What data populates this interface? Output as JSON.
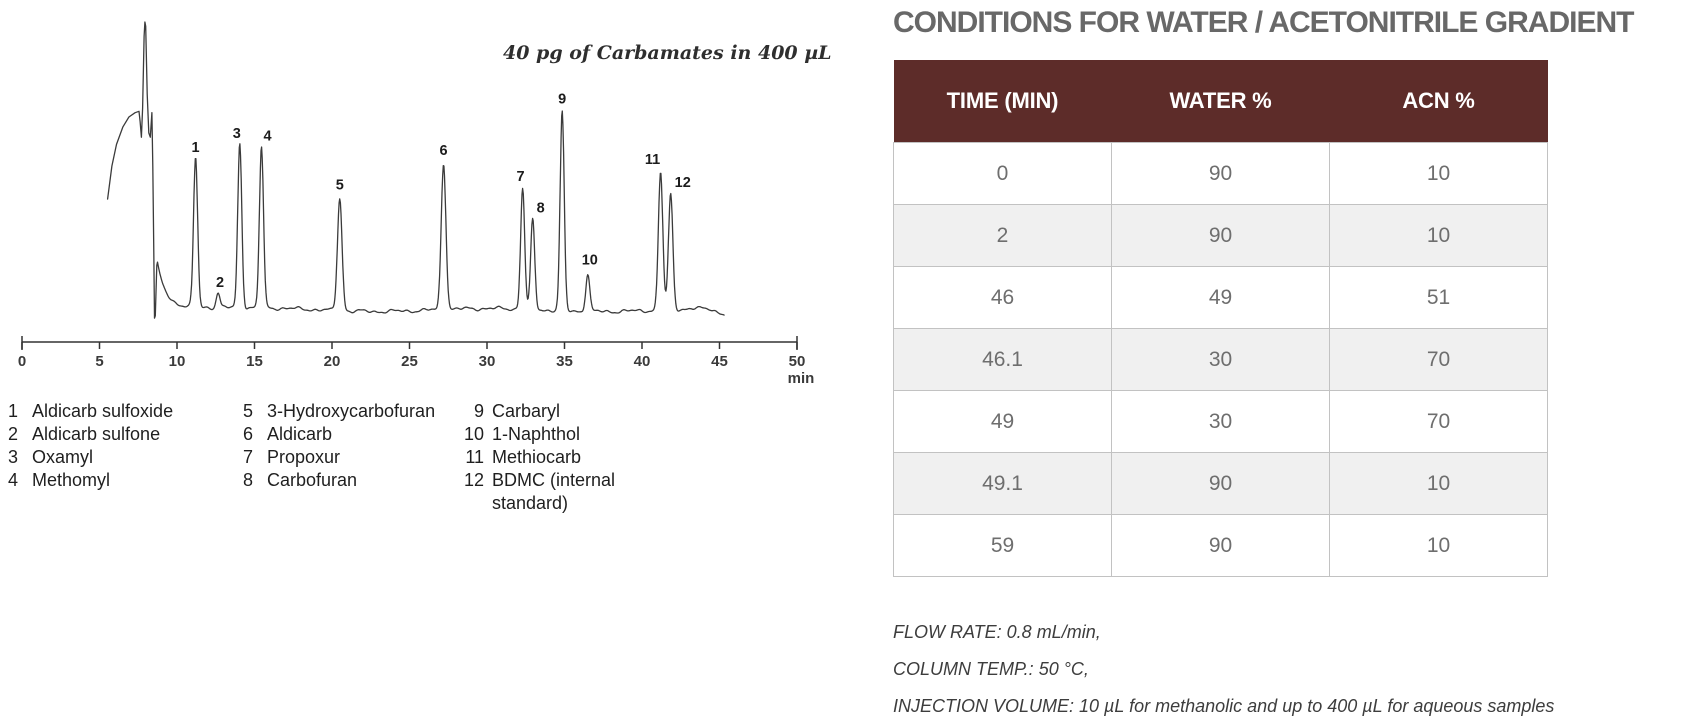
{
  "chart_data": {
    "type": "line",
    "subtype": "chromatogram",
    "title": "40 pg of Carbamates in 400 µL",
    "xlabel": "min",
    "x_range": [
      0,
      50
    ],
    "x_ticks": [
      0,
      5,
      10,
      15,
      20,
      25,
      30,
      35,
      40,
      45,
      50
    ],
    "grid": false,
    "trace_color": "#3b3b3b",
    "solvent_front_profile": [
      [
        5.52,
        0.385
      ],
      [
        5.8,
        0.5
      ],
      [
        6.1,
        0.575
      ],
      [
        6.5,
        0.635
      ],
      [
        6.9,
        0.67
      ],
      [
        7.3,
        0.685
      ],
      [
        7.55,
        0.69
      ],
      [
        7.62,
        0.655
      ],
      [
        7.7,
        0.6
      ],
      [
        7.78,
        0.7
      ],
      [
        7.88,
        0.95
      ],
      [
        7.93,
        1.0
      ],
      [
        7.98,
        0.985
      ],
      [
        8.08,
        0.75
      ],
      [
        8.18,
        0.615
      ],
      [
        8.28,
        0.6
      ],
      [
        8.38,
        0.685
      ],
      [
        8.44,
        0.5
      ],
      [
        8.5,
        0.2
      ],
      [
        8.55,
        -0.028
      ],
      [
        8.6,
        -0.02
      ],
      [
        8.7,
        0.155
      ]
    ],
    "peaks": [
      {
        "num": "1",
        "compound": "Aldicarb sulfoxide",
        "rt_min": 11.2,
        "rel_height": 0.52,
        "w": 0.13,
        "dx": 0
      },
      {
        "num": "2",
        "compound": "Aldicarb sulfone",
        "rt_min": 12.65,
        "rel_height": 0.052,
        "w": 0.12,
        "dx": 2
      },
      {
        "num": "3",
        "compound": "Oxamyl",
        "rt_min": 14.05,
        "rel_height": 0.57,
        "w": 0.13,
        "dx": -3
      },
      {
        "num": "4",
        "compound": "Methomyl",
        "rt_min": 15.45,
        "rel_height": 0.56,
        "w": 0.13,
        "dx": 6
      },
      {
        "num": "5",
        "compound": "3-Hydroxycarbofuran",
        "rt_min": 20.5,
        "rel_height": 0.39,
        "w": 0.15,
        "dx": 0
      },
      {
        "num": "6",
        "compound": "Aldicarb",
        "rt_min": 27.2,
        "rel_height": 0.51,
        "w": 0.15,
        "dx": 0
      },
      {
        "num": "7",
        "compound": "Propoxur",
        "rt_min": 32.3,
        "rel_height": 0.42,
        "w": 0.13,
        "dx": -2
      },
      {
        "num": "8",
        "compound": "Carbofuran",
        "rt_min": 32.95,
        "rel_height": 0.31,
        "w": 0.13,
        "dx": 8
      },
      {
        "num": "9",
        "compound": "Carbaryl",
        "rt_min": 34.85,
        "rel_height": 0.69,
        "w": 0.13,
        "dx": 0
      },
      {
        "num": "10",
        "compound": "1-Naphthol",
        "rt_min": 36.5,
        "rel_height": 0.13,
        "w": 0.13,
        "dx": 2
      },
      {
        "num": "11",
        "compound": "Methiocarb",
        "rt_min": 41.2,
        "rel_height": 0.48,
        "w": 0.14,
        "dx": -8
      },
      {
        "num": "12",
        "compound": "BDMC (internal standard)",
        "rt_min": 41.85,
        "rel_height": 0.4,
        "w": 0.14,
        "dx": 12
      }
    ]
  },
  "figure": {
    "legend_columns": [
      {
        "items": [
          {
            "num": "1",
            "name": "Aldicarb sulfoxide"
          },
          {
            "num": "2",
            "name": "Aldicarb sulfone"
          },
          {
            "num": "3",
            "name": "Oxamyl"
          },
          {
            "num": "4",
            "name": "Methomyl"
          }
        ]
      },
      {
        "items": [
          {
            "num": "5",
            "name": "3-Hydroxycarbofuran"
          },
          {
            "num": "6",
            "name": "Aldicarb"
          },
          {
            "num": "7",
            "name": "Propoxur"
          },
          {
            "num": "8",
            "name": "Carbofuran"
          }
        ]
      },
      {
        "items": [
          {
            "num": "9",
            "name": "Carbaryl"
          },
          {
            "num": "10",
            "name": "1-Naphthol"
          },
          {
            "num": "11",
            "name": "Methiocarb"
          },
          {
            "num": "12",
            "name": "BDMC (internal standard)"
          }
        ]
      }
    ]
  },
  "conditions": {
    "title": "CONDITIONS FOR WATER / ACETONITRILE GRADIENT",
    "table": {
      "headers": [
        "TIME (MIN)",
        "WATER %",
        "ACN %"
      ],
      "rows": [
        [
          "0",
          "90",
          "10"
        ],
        [
          "2",
          "90",
          "10"
        ],
        [
          "46",
          "49",
          "51"
        ],
        [
          "46.1",
          "30",
          "70"
        ],
        [
          "49",
          "30",
          "70"
        ],
        [
          "49.1",
          "90",
          "10"
        ],
        [
          "59",
          "90",
          "10"
        ]
      ]
    },
    "notes": [
      "FLOW RATE: 0.8 mL/min,",
      "COLUMN TEMP.: 50 °C,",
      "INJECTION VOLUME: 10 µL for methanolic and up to 400 µL for aqueous samples"
    ],
    "colors": {
      "header_bg": "#5d2c29",
      "header_text": "#ffffff",
      "row_alt_bg": "#f0f0f0",
      "border": "#c2c2c2",
      "title_text": "#686868",
      "cell_text": "#6e6e6e"
    }
  }
}
